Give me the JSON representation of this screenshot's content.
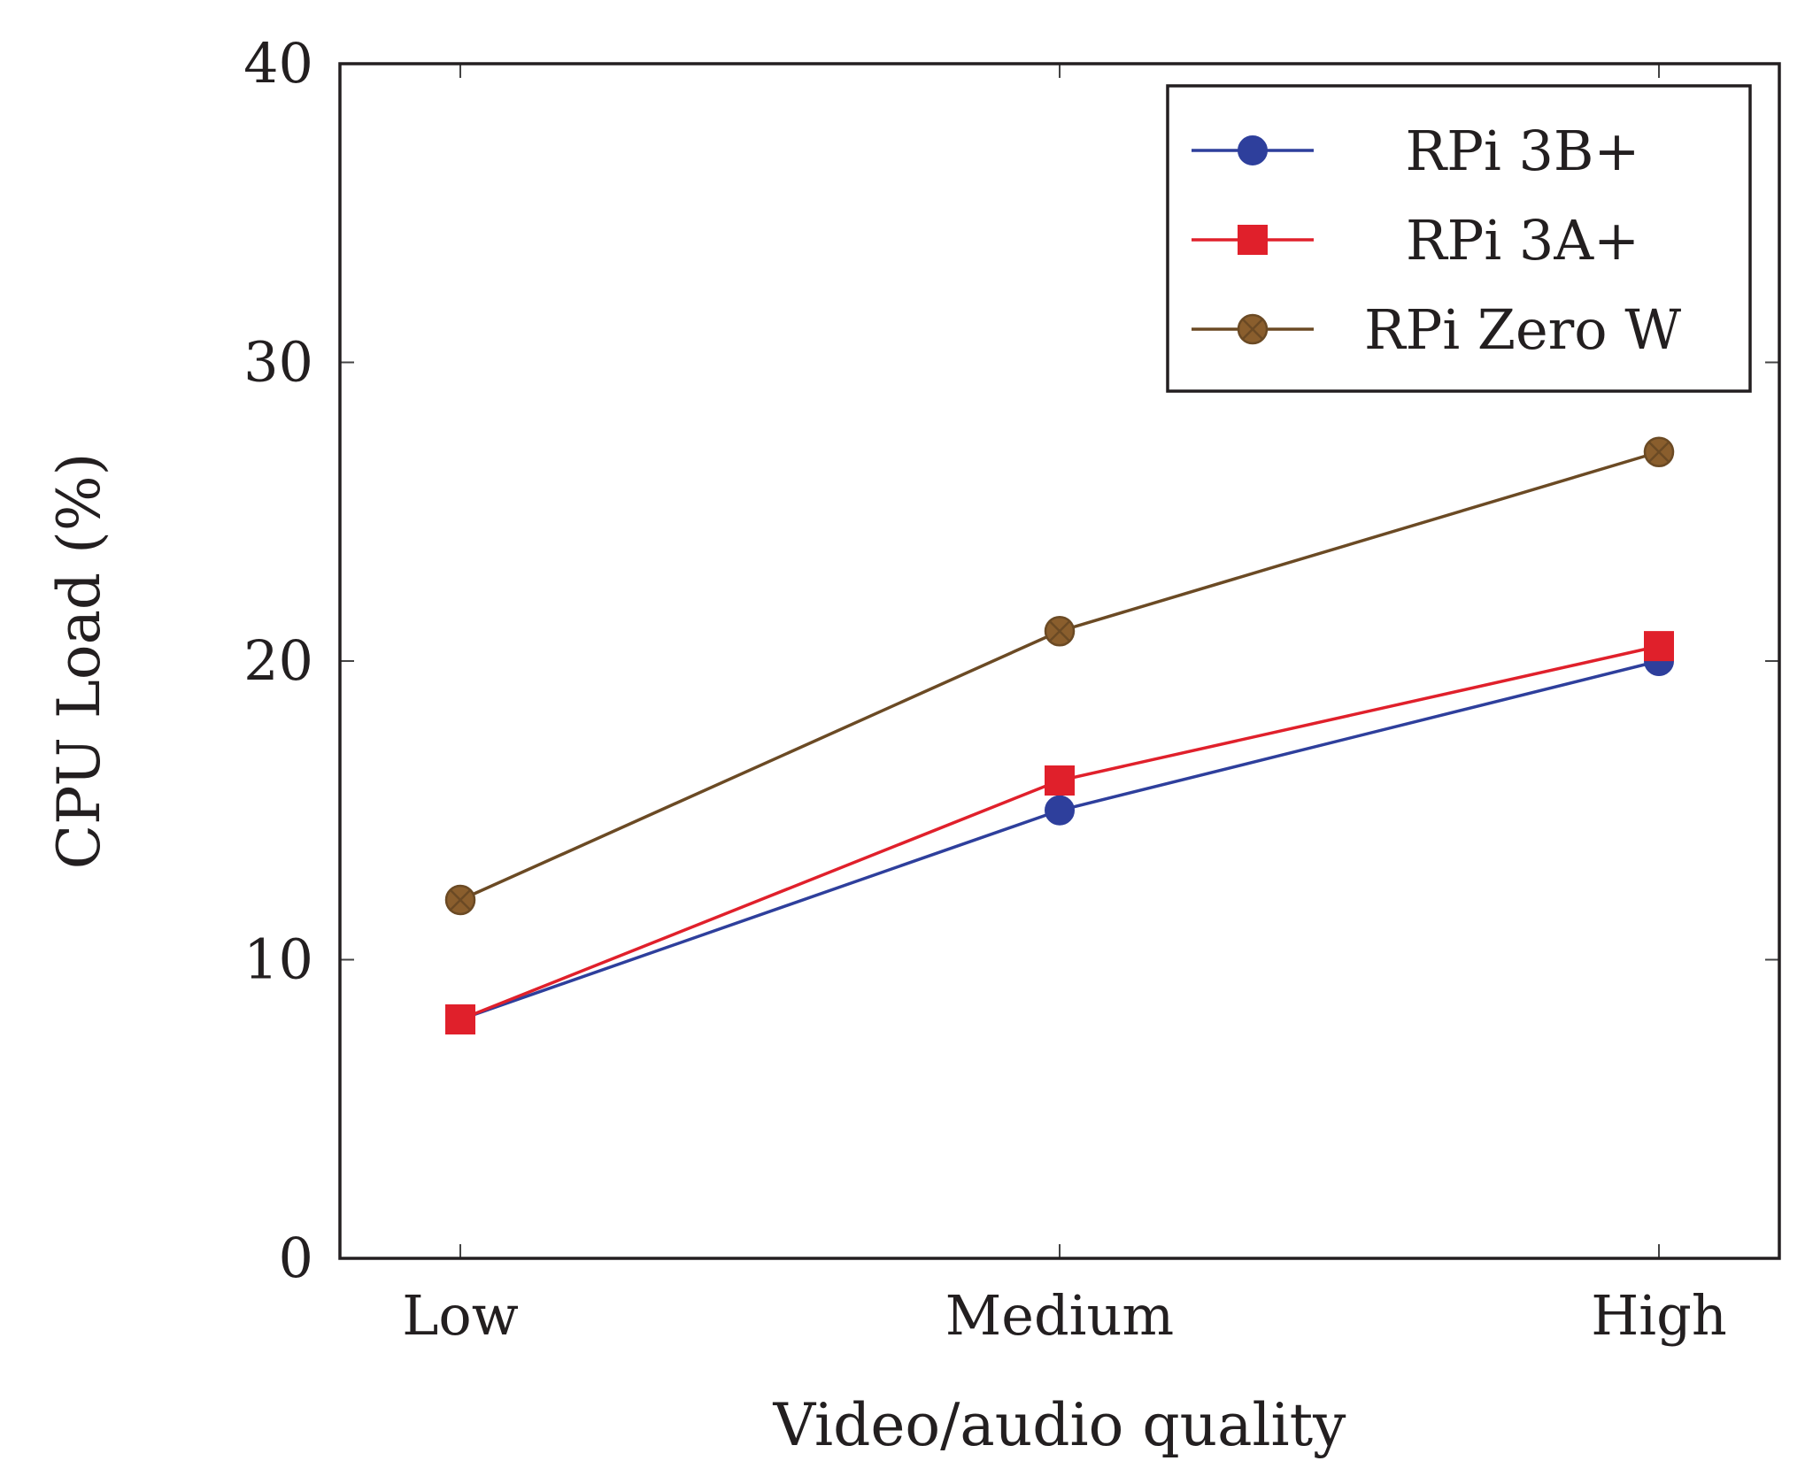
{
  "chart_data": {
    "type": "line",
    "title": "",
    "xlabel": "Video/audio quality",
    "ylabel": "CPU Load (%)",
    "categories": [
      "Low",
      "Medium",
      "High"
    ],
    "ylim": [
      0,
      40
    ],
    "yticks": [
      0,
      10,
      20,
      30,
      40
    ],
    "grid": false,
    "legend_position": "top-right",
    "series": [
      {
        "name": "RPi 3B+",
        "values": [
          8,
          15,
          20
        ],
        "color": "#2e3f9c",
        "marker": "circle"
      },
      {
        "name": "RPi 3A+",
        "values": [
          8,
          16,
          20.5
        ],
        "color": "#e0202b",
        "marker": "square"
      },
      {
        "name": "RPi Zero W",
        "values": [
          12,
          21,
          27
        ],
        "color": "#6b4a24",
        "marker": "otimes",
        "marker_fill": "#8a5e2d"
      }
    ]
  }
}
